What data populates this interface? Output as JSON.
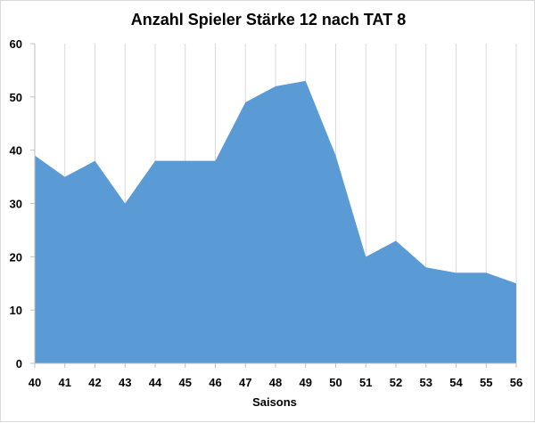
{
  "chart_data": {
    "type": "area",
    "title": "Anzahl Spieler Stärke 12 nach TAT 8",
    "xlabel": "Saisons",
    "ylabel": "",
    "categories": [
      "40",
      "41",
      "42",
      "43",
      "44",
      "45",
      "46",
      "47",
      "48",
      "49",
      "50",
      "51",
      "52",
      "53",
      "54",
      "55",
      "56"
    ],
    "values": [
      39,
      35,
      38,
      30,
      38,
      38,
      38,
      49,
      52,
      53,
      39,
      20,
      23,
      18,
      17,
      17,
      15
    ],
    "ylim": [
      0,
      60
    ],
    "yticks": [
      "0",
      "10",
      "20",
      "30",
      "40",
      "50",
      "60"
    ],
    "grid": "vertical",
    "legend": "none",
    "colors": {
      "fill": "#5B9BD5",
      "grid": "#d9d9d9",
      "axis": "#bfbfbf"
    }
  }
}
